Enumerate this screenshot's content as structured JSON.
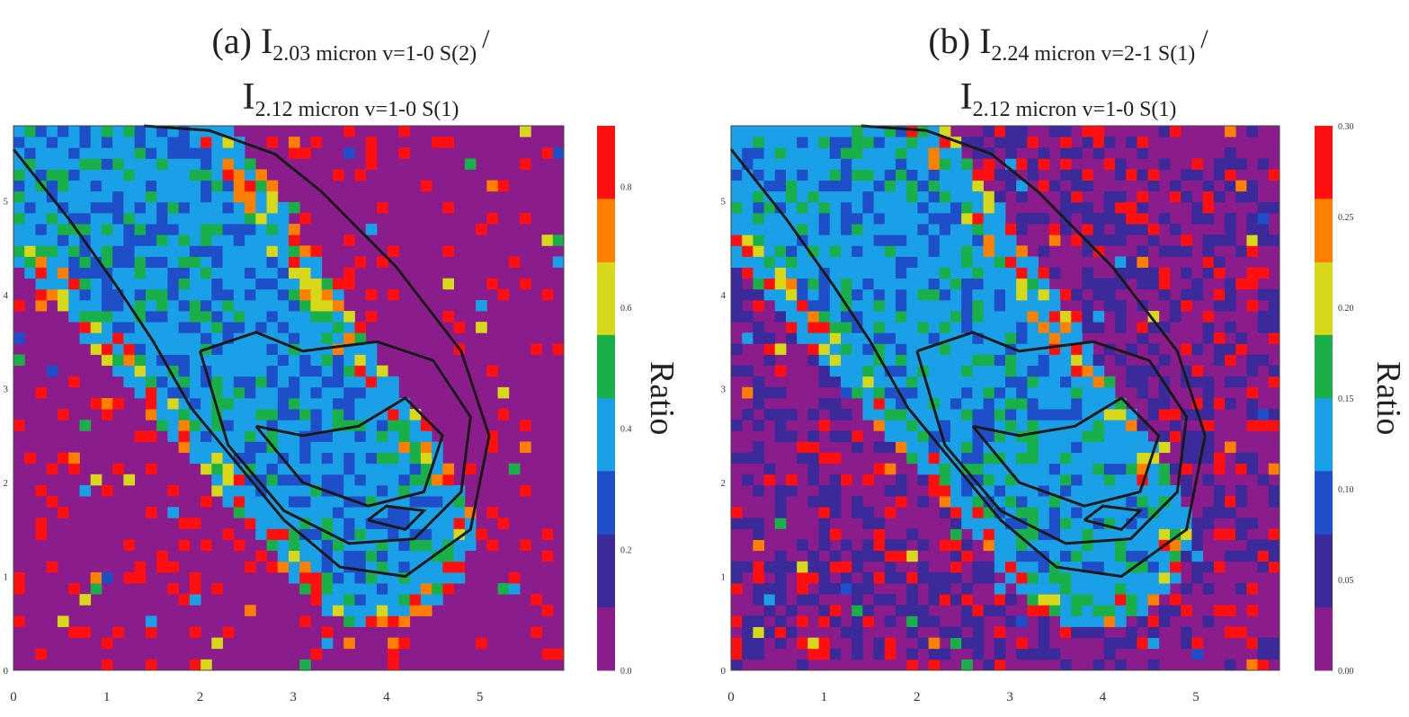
{
  "chart_data": [
    {
      "type": "heatmap",
      "panel": "a",
      "title_prefix": "(a) I",
      "title_num_sub": "2.03 micron v=1-0 S(2)",
      "title_slash": "/",
      "title_den_i": "I",
      "title_den_sub": "2.12 micron v=1-0 S(1)",
      "colorbar_label": "Ratio",
      "colorbar_ticks": [
        "0.0",
        "0.2",
        "0.4",
        "0.6",
        "0.8"
      ],
      "colorbar_range": [
        0.0,
        0.9
      ],
      "x_ticks": [
        "0",
        "1",
        "2",
        "3",
        "4",
        "5"
      ],
      "y_ticks": [
        "0",
        "1",
        "2",
        "3",
        "4",
        "5"
      ],
      "xlim": [
        0,
        5.9
      ],
      "ylim": [
        0,
        5.8
      ],
      "inside_value": 0.38,
      "outside_value": 0.0,
      "grid_size": 50
    },
    {
      "type": "heatmap",
      "panel": "b",
      "title_prefix": "(b) I",
      "title_num_sub": "2.24 micron v=2-1 S(1)",
      "title_slash": "/",
      "title_den_i": "I",
      "title_den_sub": "2.12 micron v=1-0 S(1)",
      "colorbar_label": "Ratio",
      "colorbar_ticks": [
        "0.00",
        "0.05",
        "0.10",
        "0.15",
        "0.20",
        "0.25",
        "0.30"
      ],
      "colorbar_range": [
        0.0,
        0.3
      ],
      "x_ticks": [
        "0",
        "1",
        "2",
        "3",
        "4",
        "5"
      ],
      "y_ticks": [
        "0",
        "1",
        "2",
        "3",
        "4",
        "5"
      ],
      "xlim": [
        0,
        5.9
      ],
      "ylim": [
        0,
        5.8
      ],
      "inside_value": 0.13,
      "outside_value": 0.02,
      "grid_size": 50
    }
  ],
  "colormap": [
    "#8a1c8c",
    "#3a2a9a",
    "#1f4fc8",
    "#1aa0e6",
    "#19b04a",
    "#d8d81a",
    "#ff8000",
    "#ff1010"
  ]
}
